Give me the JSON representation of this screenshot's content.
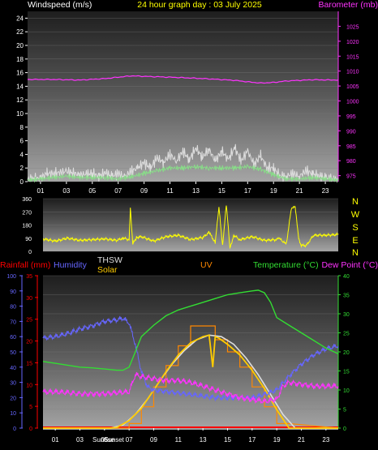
{
  "header": {
    "left_label": "Windspeed (m/s)",
    "center_label": "24 hour graph day : 03 July 2025",
    "right_label": "Barometer (mb)"
  },
  "bottom_header": {
    "rainfall": "Rainfall (mm)",
    "humidity": "Humidity",
    "thsw": "THSW",
    "solar": "Solar",
    "uv": "UV",
    "temperature": "Temperature (°C)",
    "dewpoint": "Dew Point (°C)"
  },
  "compass": [
    "N",
    "W",
    "S",
    "E",
    "N"
  ],
  "sun_labels": {
    "sunrise": "Sunrise",
    "sunset": "Sunset"
  },
  "colors": {
    "wind_gust": "#dddddd",
    "wind_avg": "#88dd88",
    "barometer": "#ff33ff",
    "direction": "#ffff00",
    "humidity": "#6666ff",
    "temperature": "#33dd33",
    "dewpoint": "#ff33ff",
    "solar": "#ffcc00",
    "thsw": "#dddddd",
    "uv": "#ff8800",
    "rainfall": "#ff0000"
  },
  "chart_data": [
    {
      "type": "line",
      "x_ticks": [
        "01",
        "03",
        "05",
        "07",
        "09",
        "11",
        "13",
        "15",
        "17",
        "19",
        "21",
        "23"
      ],
      "y_left_ticks": [
        "0",
        "2",
        "4",
        "6",
        "8",
        "10",
        "12",
        "14",
        "16",
        "18",
        "20",
        "22",
        "24"
      ],
      "y_right_ticks": [
        "975",
        "980",
        "985",
        "990",
        "995",
        "1000",
        "1005",
        "1010",
        "1015",
        "1020",
        "1025"
      ],
      "ylim_left": [
        0,
        25
      ],
      "ylim_right": [
        973,
        1030
      ],
      "xlim": [
        0,
        24
      ],
      "series": [
        {
          "name": "Windspeed gust",
          "axis": "left",
          "x": [
            0,
            1,
            1.5,
            2,
            3,
            4,
            5,
            5.5,
            6,
            6.5,
            7,
            7.5,
            8,
            8.5,
            9,
            9.5,
            10,
            10.5,
            11,
            11.5,
            12,
            12.5,
            13,
            13.5,
            14,
            14.5,
            15,
            15.5,
            16,
            16.5,
            17,
            17.5,
            18,
            18.5,
            19,
            19.5,
            20,
            20.5,
            21,
            21.5,
            22,
            22.5,
            23,
            24
          ],
          "values": [
            0.3,
            0.5,
            1.2,
            1.2,
            1.5,
            1.0,
            1.2,
            0.8,
            1.3,
            0.8,
            1.2,
            0.7,
            1.5,
            2.0,
            2.8,
            2.0,
            3.5,
            2.8,
            4.0,
            3.0,
            4.5,
            3.2,
            5.0,
            3.5,
            4.8,
            3.0,
            4.5,
            3.2,
            5.0,
            3.0,
            4.5,
            2.5,
            3.8,
            2.0,
            2.0,
            0.8,
            0.8,
            1.2,
            0.8,
            1.6,
            1.2,
            0.8,
            0.6,
            0.2
          ]
        },
        {
          "name": "Windspeed average",
          "axis": "left",
          "x": [
            0,
            1,
            2,
            3,
            4,
            5,
            6,
            7,
            8,
            9,
            10,
            11,
            12,
            13,
            14,
            15,
            16,
            17,
            18,
            19,
            20,
            21,
            22,
            23,
            24
          ],
          "values": [
            0.2,
            0.4,
            0.6,
            0.8,
            0.6,
            0.6,
            0.6,
            0.4,
            0.7,
            1.2,
            1.6,
            2.0,
            2.0,
            2.2,
            2.0,
            2.0,
            2.0,
            2.2,
            1.8,
            1.0,
            0.4,
            0.4,
            0.6,
            0.4,
            0.2
          ]
        },
        {
          "name": "Barometer",
          "axis": "right",
          "x": [
            0,
            2,
            4,
            6,
            8,
            10,
            12,
            14,
            16,
            17,
            18,
            19,
            20,
            22,
            24
          ],
          "values": [
            1007.2,
            1007.2,
            1007.0,
            1007.5,
            1008.4,
            1008.1,
            1007.8,
            1007.4,
            1006.9,
            1006.4,
            1006.0,
            1006.2,
            1006.7,
            1007.1,
            1007.0
          ]
        }
      ]
    },
    {
      "type": "line",
      "y_ticks": [
        "0",
        "90",
        "180",
        "270",
        "360"
      ],
      "ylim": [
        0,
        360
      ],
      "xlim": [
        0,
        24
      ],
      "series": [
        {
          "name": "Wind direction",
          "x": [
            0,
            1,
            2,
            3,
            4,
            5,
            6,
            6.5,
            7,
            7.1,
            7.3,
            7.6,
            8,
            9,
            10,
            11,
            12,
            13,
            13.5,
            14,
            14.3,
            14.6,
            14.9,
            15.2,
            15.5,
            16,
            17,
            18,
            19,
            19.2,
            19.5,
            19.8,
            20.2,
            20.5,
            20.8,
            21,
            21.4,
            22,
            23,
            24
          ],
          "values": [
            85,
            70,
            90,
            75,
            80,
            85,
            75,
            90,
            80,
            300,
            50,
            95,
            100,
            70,
            100,
            110,
            80,
            95,
            130,
            60,
            300,
            40,
            320,
            20,
            110,
            80,
            100,
            75,
            80,
            95,
            60,
            60,
            300,
            300,
            80,
            40,
            40,
            110,
            110,
            115
          ]
        }
      ]
    },
    {
      "type": "line",
      "x_ticks": [
        "01",
        "03",
        "05",
        "07",
        "09",
        "11",
        "13",
        "15",
        "17",
        "19",
        "21",
        "23"
      ],
      "y_left_outer_ticks": [
        "0",
        "10",
        "20",
        "30",
        "40",
        "50",
        "60",
        "70",
        "80",
        "90",
        "100"
      ],
      "y_left_inner_ticks": [
        "0",
        "5",
        "10",
        "15",
        "20",
        "25",
        "30",
        "35"
      ],
      "y_right_ticks": [
        "0",
        "5",
        "10",
        "15",
        "20",
        "25",
        "30",
        "35",
        "40"
      ],
      "xlim": [
        0,
        24
      ],
      "series": [
        {
          "name": "Humidity",
          "axis": "outer-left",
          "x": [
            0,
            1,
            2,
            3,
            4,
            5,
            6,
            6.5,
            7,
            7.5,
            8,
            8.5,
            9,
            10,
            11,
            12,
            13,
            14,
            15,
            16,
            17,
            18,
            19,
            20,
            21,
            22,
            23,
            24
          ],
          "values": [
            59,
            60,
            62,
            65,
            67,
            70,
            71,
            72,
            69,
            55,
            37,
            27,
            25,
            24,
            23,
            22,
            21,
            20,
            20,
            20,
            20,
            22,
            25,
            34,
            42,
            48,
            52,
            54
          ]
        },
        {
          "name": "Temperature",
          "axis": "right",
          "x": [
            0,
            1,
            2,
            3,
            4,
            5,
            6,
            6.5,
            7,
            7.5,
            8,
            9,
            10,
            11,
            12,
            13,
            14,
            15,
            16,
            17,
            17.5,
            18,
            18.5,
            19,
            20,
            21,
            22,
            23,
            24
          ],
          "values": [
            17.5,
            17,
            16.5,
            16,
            15.8,
            15.5,
            15.2,
            15.2,
            16,
            20,
            24,
            27,
            29.5,
            31,
            32,
            33,
            34,
            35,
            35.5,
            36,
            36.2,
            35.5,
            33,
            29,
            27,
            25,
            23,
            21,
            19.5
          ]
        },
        {
          "name": "Dew Point",
          "axis": "right",
          "x": [
            0,
            1,
            2,
            3,
            4,
            5,
            6,
            7,
            7.5,
            8,
            9,
            10,
            11,
            12,
            13,
            14,
            15,
            16,
            17,
            18,
            19,
            19.5,
            20,
            21,
            22,
            23,
            24
          ],
          "values": [
            9.5,
            9.5,
            9.3,
            9.0,
            9.0,
            9.0,
            9.3,
            9.5,
            14,
            13.5,
            13,
            12.5,
            12.5,
            12,
            11,
            10,
            9,
            8,
            7.5,
            7.0,
            7.5,
            11,
            12,
            11.5,
            11,
            11,
            11
          ]
        },
        {
          "name": "Solar",
          "axis": "left-pixels",
          "x": [
            0,
            5.5,
            6,
            7,
            8,
            9,
            10,
            11,
            12,
            13,
            13.5,
            13.8,
            14,
            14.3,
            15,
            16,
            17,
            18,
            19,
            19.5,
            20,
            24
          ],
          "values": [
            0,
            0,
            0.5,
            5,
            13,
            25,
            37,
            48,
            56,
            60,
            61,
            40,
            60,
            59,
            55,
            48,
            38,
            26,
            12,
            6,
            0,
            0
          ]
        },
        {
          "name": "THSW",
          "axis": "left-pixels",
          "x": [
            0,
            5.5,
            6.5,
            7.5,
            8.5,
            9.5,
            10.5,
            11.5,
            12.5,
            13.5,
            14.5,
            15.5,
            16.5,
            17.5,
            18.5,
            19.5,
            20.5,
            24
          ],
          "values": [
            0,
            0,
            2,
            9,
            19,
            31,
            42,
            51,
            58,
            61,
            60,
            55,
            46,
            35,
            22,
            9,
            0,
            0
          ]
        },
        {
          "name": "UV",
          "axis": "left-pixels",
          "x": [
            0,
            6,
            7,
            7,
            8,
            8,
            9,
            9,
            10,
            10,
            11,
            11,
            12,
            12,
            14,
            14,
            15,
            15,
            16,
            16,
            17,
            17,
            18,
            18,
            19,
            19,
            20,
            24
          ],
          "values": [
            0,
            0,
            0,
            3,
            3,
            14,
            14,
            27,
            27,
            41,
            41,
            54,
            54,
            67,
            67,
            58,
            58,
            50,
            50,
            40,
            40,
            27,
            27,
            14,
            14,
            3,
            3,
            0
          ]
        },
        {
          "name": "Rainfall",
          "axis": "outer-left",
          "x": [
            0,
            24
          ],
          "values": [
            0,
            0
          ]
        }
      ]
    }
  ]
}
